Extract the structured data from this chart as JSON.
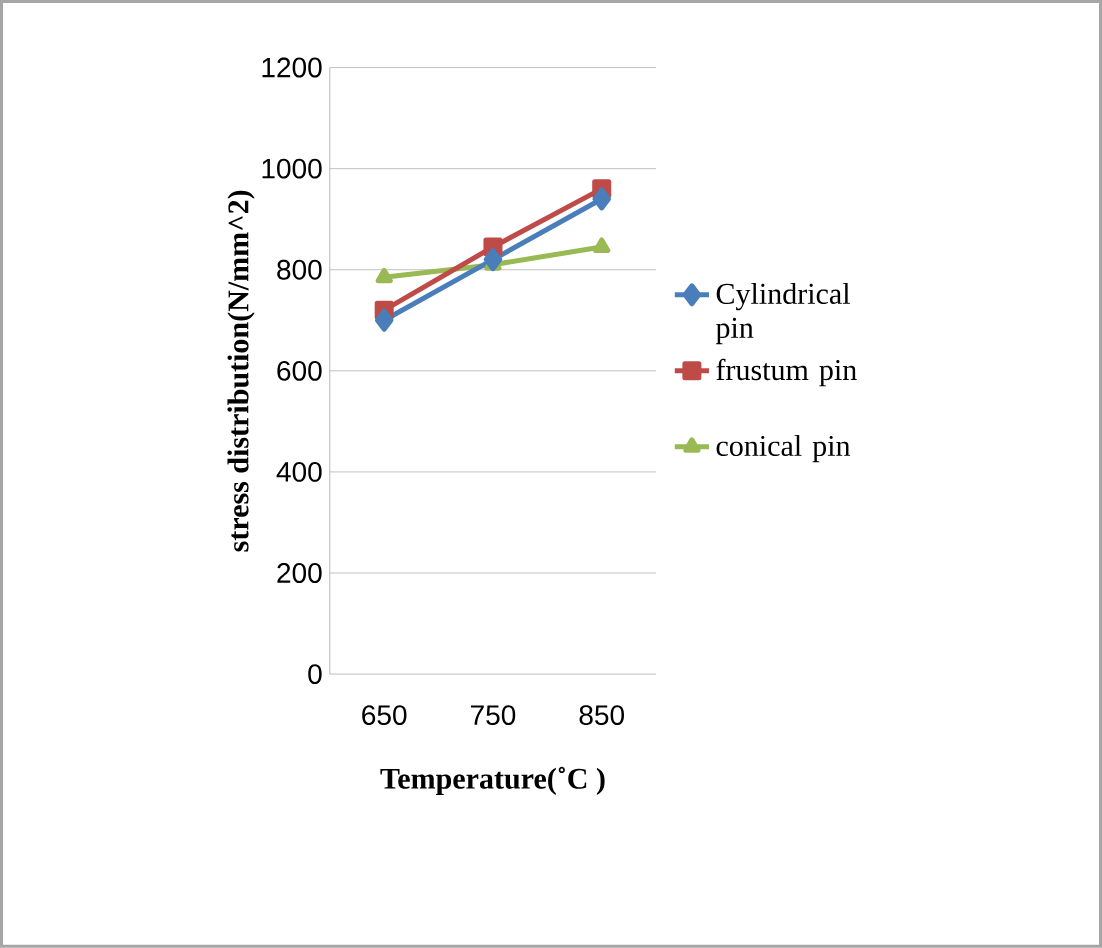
{
  "chart_data": {
    "type": "line",
    "xlabel": "Temperature(˚C )",
    "ylabel": "stress distribution(N/mm^2)",
    "categories": [
      "650",
      "750",
      "850"
    ],
    "series": [
      {
        "name": "Cylindrical pin",
        "color": "#4a7ebb",
        "marker": "diamond",
        "values": [
          700,
          820,
          940
        ]
      },
      {
        "name": "frustum pin",
        "color": "#be4b48",
        "marker": "square",
        "values": [
          720,
          845,
          960
        ]
      },
      {
        "name": "conical pin",
        "color": "#98b954",
        "marker": "triangle",
        "values": [
          785,
          810,
          845
        ]
      }
    ],
    "ylim": [
      0,
      1200
    ],
    "yticks": [
      0,
      200,
      400,
      600,
      800,
      1000,
      1200
    ],
    "grid": "y",
    "legend": "right"
  }
}
